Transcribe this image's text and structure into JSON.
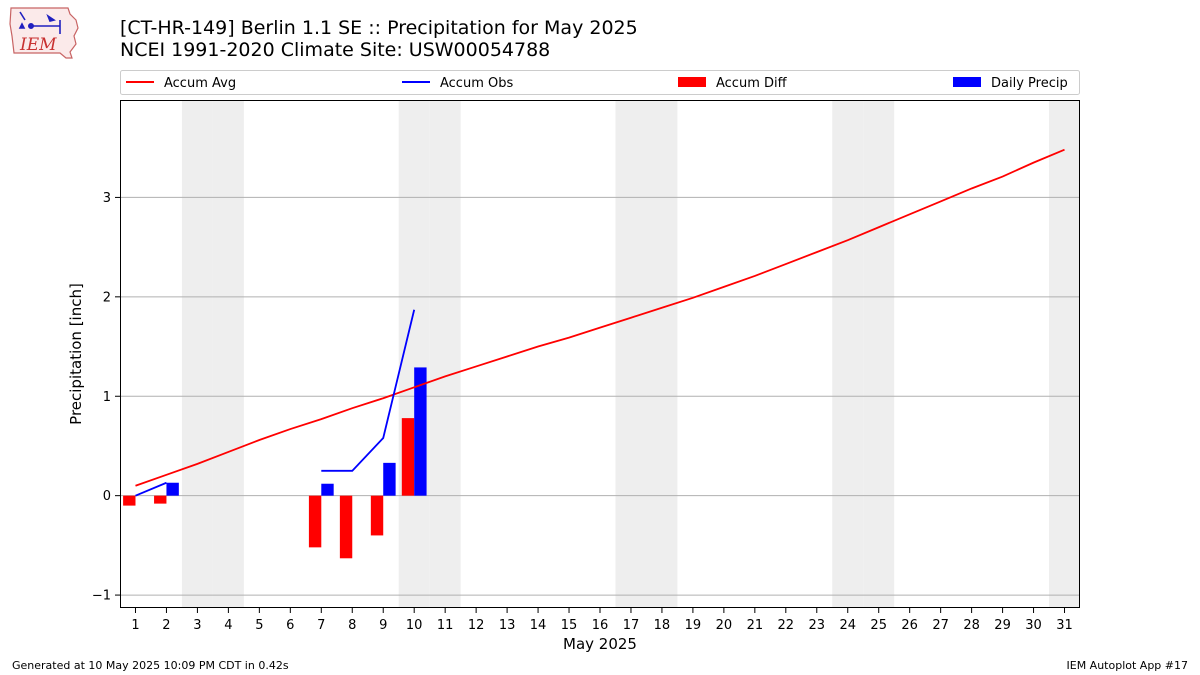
{
  "header": {
    "logo_text": "IEM",
    "title_line1": "[CT-HR-149] Berlin 1.1 SE :: Precipitation for May 2025",
    "title_line2": "NCEI 1991-2020 Climate Site: USW00054788"
  },
  "footer": {
    "left": "Generated at 10 May 2025 10:09 PM CDT in 0.42s",
    "right": "IEM Autoplot App #17"
  },
  "colors": {
    "accum_avg": "#ff0000",
    "accum_obs": "#0000ff",
    "accum_diff": "#ff0000",
    "daily_precip": "#0000ff",
    "weekend_shade": "#eeeeee",
    "grid": "#b0b0b0"
  },
  "chart_data": {
    "type": "bar",
    "xlabel": "May 2025",
    "ylabel": "Precipitation [inch]",
    "xlim": [
      0.5,
      31.5
    ],
    "ylim": [
      -1.13,
      3.98
    ],
    "yticks": [
      -1,
      0,
      1,
      2,
      3
    ],
    "ytick_labels": [
      "−1",
      "0",
      "1",
      "2",
      "3"
    ],
    "x": [
      1,
      2,
      3,
      4,
      5,
      6,
      7,
      8,
      9,
      10,
      11,
      12,
      13,
      14,
      15,
      16,
      17,
      18,
      19,
      20,
      21,
      22,
      23,
      24,
      25,
      26,
      27,
      28,
      29,
      30,
      31
    ],
    "xtick_labels": [
      "1",
      "2",
      "3",
      "4",
      "5",
      "6",
      "7",
      "8",
      "9",
      "10",
      "11",
      "12",
      "13",
      "14",
      "15",
      "16",
      "17",
      "18",
      "19",
      "20",
      "21",
      "22",
      "23",
      "24",
      "25",
      "26",
      "27",
      "28",
      "29",
      "30",
      "31"
    ],
    "grid": "horizontal",
    "legend_position": "top",
    "weekend_days": [
      3,
      4,
      10,
      11,
      17,
      18,
      24,
      25,
      31
    ],
    "legend": [
      {
        "label": "Accum Avg",
        "kind": "line",
        "color": "#ff0000"
      },
      {
        "label": "Accum Obs",
        "kind": "line",
        "color": "#0000ff"
      },
      {
        "label": "Accum Diff",
        "kind": "bar",
        "color": "#ff0000"
      },
      {
        "label": "Daily Precip",
        "kind": "bar",
        "color": "#0000ff"
      }
    ],
    "series": [
      {
        "name": "Accum Avg",
        "kind": "line",
        "values": [
          0.1,
          0.21,
          0.32,
          0.44,
          0.56,
          0.67,
          0.77,
          0.88,
          0.98,
          1.09,
          1.2,
          1.3,
          1.4,
          1.5,
          1.59,
          1.69,
          1.79,
          1.89,
          1.99,
          2.1,
          2.21,
          2.33,
          2.45,
          2.57,
          2.7,
          2.83,
          2.96,
          3.09,
          3.21,
          3.35,
          3.48
        ]
      },
      {
        "name": "Accum Obs",
        "kind": "line",
        "x": [
          1,
          2,
          3,
          4,
          5,
          6,
          7,
          8,
          9,
          10
        ],
        "values": [
          0.0,
          0.13,
          null,
          null,
          null,
          null,
          0.25,
          0.25,
          0.58,
          1.87
        ]
      },
      {
        "name": "Accum Diff",
        "kind": "bar",
        "x": [
          1,
          2,
          7,
          8,
          9,
          10
        ],
        "values": [
          -0.1,
          -0.08,
          -0.52,
          -0.63,
          -0.4,
          0.78
        ]
      },
      {
        "name": "Daily Precip",
        "kind": "bar",
        "x": [
          2,
          7,
          9,
          10
        ],
        "values": [
          0.13,
          0.12,
          0.33,
          1.29
        ]
      }
    ]
  }
}
